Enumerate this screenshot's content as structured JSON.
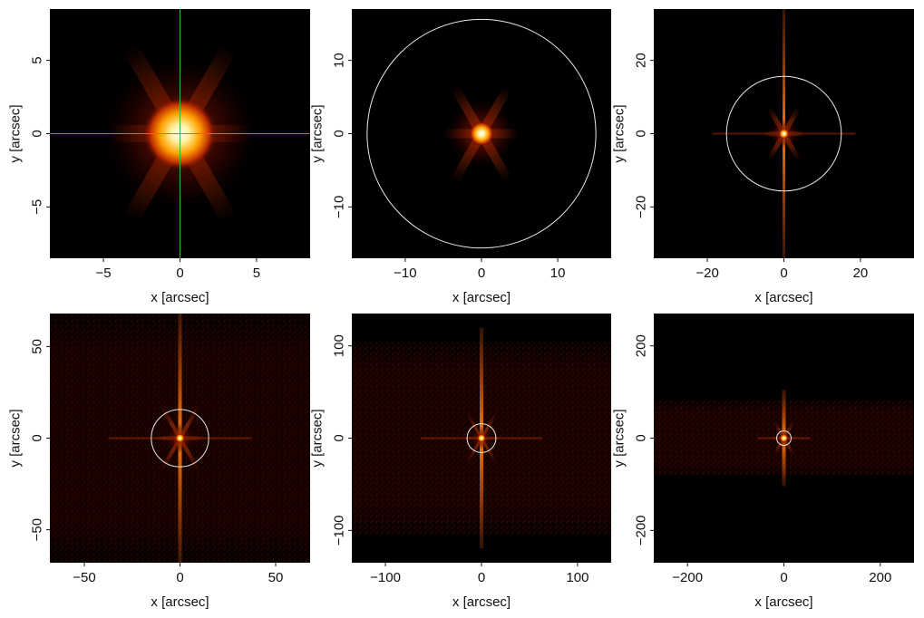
{
  "figure": {
    "background": "#ffffff",
    "colormap": [
      "#000000",
      "#3a0000",
      "#8a1a00",
      "#d04a00",
      "#ff9a00",
      "#ffe070",
      "#ffffff"
    ]
  },
  "chart_data": [
    {
      "type": "heatmap",
      "xlabel": "x [arcsec]",
      "ylabel": "y [arcsec]",
      "xlim": [
        -8.5,
        8.5
      ],
      "ylim": [
        -8.5,
        8.5
      ],
      "xticks": [
        -5,
        0,
        5
      ],
      "yticks": [
        -5,
        0,
        5
      ],
      "tick_labels": {
        "x": [
          "−5",
          "0",
          "5"
        ],
        "y": [
          "−5",
          "0",
          "5"
        ]
      },
      "crosshair": true,
      "crosshair_color": "#3cb43c",
      "circle_radius": null
    },
    {
      "type": "heatmap",
      "xlabel": "x [arcsec]",
      "ylabel": "y [arcsec]",
      "xlim": [
        -17,
        17
      ],
      "ylim": [
        -17,
        17
      ],
      "xticks": [
        -10,
        0,
        10
      ],
      "yticks": [
        -10,
        0,
        10
      ],
      "tick_labels": {
        "x": [
          "−10",
          "0",
          "10"
        ],
        "y": [
          "−10",
          "0",
          "10"
        ]
      },
      "crosshair": false,
      "circle_radius": 15
    },
    {
      "type": "heatmap",
      "xlabel": "x [arcsec]",
      "ylabel": "y [arcsec]",
      "xlim": [
        -34,
        34
      ],
      "ylim": [
        -34,
        34
      ],
      "xticks": [
        -20,
        0,
        20
      ],
      "yticks": [
        -20,
        0,
        20
      ],
      "tick_labels": {
        "x": [
          "−20",
          "0",
          "20"
        ],
        "y": [
          "−20",
          "0",
          "20"
        ]
      },
      "crosshair": false,
      "circle_radius": 15
    },
    {
      "type": "heatmap",
      "xlabel": "x [arcsec]",
      "ylabel": "y [arcsec]",
      "xlim": [
        -68,
        68
      ],
      "ylim": [
        -68,
        68
      ],
      "xticks": [
        -50,
        0,
        50
      ],
      "yticks": [
        -50,
        0,
        50
      ],
      "tick_labels": {
        "x": [
          "−50",
          "0",
          "50"
        ],
        "y": [
          "−50",
          "0",
          "50"
        ]
      },
      "crosshair": false,
      "circle_radius": 15
    },
    {
      "type": "heatmap",
      "xlabel": "x [arcsec]",
      "ylabel": "y [arcsec]",
      "xlim": [
        -135,
        135
      ],
      "ylim": [
        -135,
        135
      ],
      "xticks": [
        -100,
        0,
        100
      ],
      "yticks": [
        -100,
        0,
        100
      ],
      "tick_labels": {
        "x": [
          "−100",
          "0",
          "100"
        ],
        "y": [
          "−100",
          "0",
          "100"
        ]
      },
      "crosshair": false,
      "circle_radius": 15
    },
    {
      "type": "heatmap",
      "xlabel": "x [arcsec]",
      "ylabel": "y [arcsec]",
      "xlim": [
        -270,
        270
      ],
      "ylim": [
        -270,
        270
      ],
      "xticks": [
        -200,
        0,
        200
      ],
      "yticks": [
        -200,
        0,
        200
      ],
      "tick_labels": {
        "x": [
          "−200",
          "0",
          "200"
        ],
        "y": [
          "−200",
          "0",
          "200"
        ]
      },
      "crosshair": false,
      "circle_radius": 15
    }
  ]
}
